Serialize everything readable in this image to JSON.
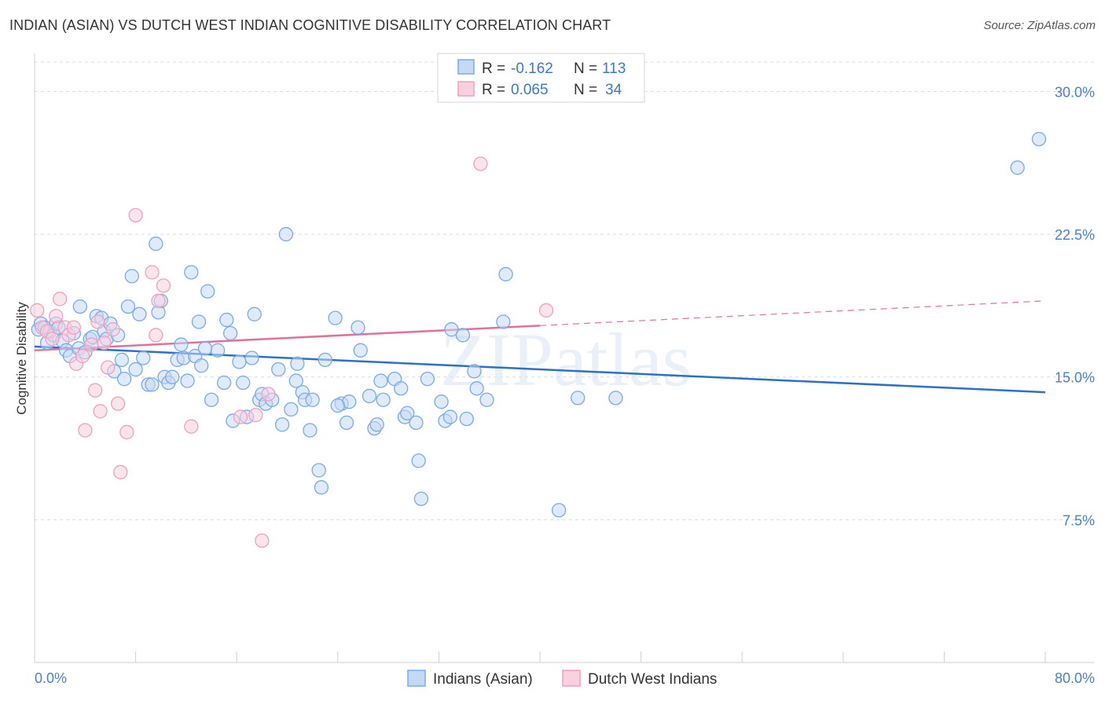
{
  "title": "INDIAN (ASIAN) VS DUTCH WEST INDIAN COGNITIVE DISABILITY CORRELATION CHART",
  "source": "Source: ZipAtlas.com",
  "watermark": "ZIPatlas",
  "chart_data": {
    "type": "scatter",
    "ylabel": "Cognitive Disability",
    "xlim": [
      0,
      80
    ],
    "ylim": [
      0,
      32
    ],
    "x_tick_labels": [
      "0.0%",
      "80.0%"
    ],
    "y_ticks": [
      7.5,
      15.0,
      22.5,
      30.0
    ],
    "y_tick_labels": [
      "7.5%",
      "15.0%",
      "22.5%",
      "30.0%"
    ],
    "grid": true,
    "legend_position": "top-center",
    "legend": [
      {
        "r_label": "R =",
        "r_value": "-0.162",
        "n_label": "N =",
        "n_value": "113"
      },
      {
        "r_label": "R =",
        "r_value": "0.065",
        "n_label": "N =",
        "n_value": "34"
      }
    ],
    "series": [
      {
        "name": "Indians (Asian)",
        "color": "#7aaae8",
        "fill": "#c4d9f5",
        "line_color": "#2c6fcd",
        "trend": {
          "x0": 0,
          "y0": 16.6,
          "x1": 80,
          "y1": 14.2,
          "dashed_from": null
        },
        "points": [
          [
            0.3,
            17.5
          ],
          [
            0.5,
            17.8
          ],
          [
            0.8,
            17.6
          ],
          [
            1.0,
            16.8
          ],
          [
            1.2,
            17.4
          ],
          [
            1.5,
            17.2
          ],
          [
            1.7,
            17.8
          ],
          [
            1.9,
            17.6
          ],
          [
            2.2,
            16.9
          ],
          [
            2.5,
            16.4
          ],
          [
            2.8,
            16.1
          ],
          [
            3.1,
            17.3
          ],
          [
            3.5,
            16.5
          ],
          [
            3.6,
            18.7
          ],
          [
            4.0,
            16.3
          ],
          [
            4.4,
            17.0
          ],
          [
            4.6,
            17.1
          ],
          [
            4.9,
            18.2
          ],
          [
            5.3,
            18.1
          ],
          [
            5.5,
            17.4
          ],
          [
            5.7,
            17.0
          ],
          [
            6.0,
            17.8
          ],
          [
            6.3,
            15.3
          ],
          [
            6.6,
            17.2
          ],
          [
            6.9,
            15.9
          ],
          [
            7.1,
            14.9
          ],
          [
            7.4,
            18.7
          ],
          [
            7.7,
            20.3
          ],
          [
            8.0,
            15.4
          ],
          [
            8.3,
            18.3
          ],
          [
            8.6,
            16.0
          ],
          [
            9.0,
            14.6
          ],
          [
            9.3,
            14.6
          ],
          [
            9.6,
            22.0
          ],
          [
            9.8,
            18.4
          ],
          [
            10.0,
            19.0
          ],
          [
            10.3,
            15.0
          ],
          [
            10.6,
            14.7
          ],
          [
            10.9,
            15.0
          ],
          [
            11.3,
            15.9
          ],
          [
            11.6,
            16.7
          ],
          [
            11.8,
            16.0
          ],
          [
            12.1,
            14.8
          ],
          [
            12.4,
            20.5
          ],
          [
            12.7,
            16.1
          ],
          [
            13.0,
            17.9
          ],
          [
            13.5,
            16.5
          ],
          [
            13.7,
            19.5
          ],
          [
            13.2,
            15.6
          ],
          [
            14.0,
            13.8
          ],
          [
            14.5,
            16.4
          ],
          [
            15.0,
            14.7
          ],
          [
            15.2,
            18.0
          ],
          [
            15.5,
            17.3
          ],
          [
            15.7,
            12.7
          ],
          [
            16.2,
            15.8
          ],
          [
            16.5,
            14.7
          ],
          [
            16.8,
            12.9
          ],
          [
            17.2,
            16.0
          ],
          [
            17.4,
            18.3
          ],
          [
            17.8,
            13.8
          ],
          [
            18.0,
            14.1
          ],
          [
            18.3,
            13.6
          ],
          [
            18.8,
            13.8
          ],
          [
            19.3,
            15.4
          ],
          [
            19.6,
            12.5
          ],
          [
            19.9,
            22.5
          ],
          [
            20.3,
            13.3
          ],
          [
            20.7,
            14.8
          ],
          [
            20.8,
            15.7
          ],
          [
            21.2,
            14.2
          ],
          [
            21.4,
            13.8
          ],
          [
            21.8,
            12.2
          ],
          [
            22.0,
            13.8
          ],
          [
            22.5,
            10.1
          ],
          [
            22.7,
            9.2
          ],
          [
            23.0,
            15.9
          ],
          [
            23.8,
            18.1
          ],
          [
            24.3,
            13.6
          ],
          [
            24.7,
            12.6
          ],
          [
            24.9,
            13.7
          ],
          [
            25.6,
            17.6
          ],
          [
            25.8,
            16.4
          ],
          [
            26.5,
            14.0
          ],
          [
            26.9,
            12.3
          ],
          [
            27.1,
            12.5
          ],
          [
            27.4,
            14.8
          ],
          [
            27.6,
            13.8
          ],
          [
            28.5,
            14.9
          ],
          [
            29.0,
            14.4
          ],
          [
            29.3,
            12.9
          ],
          [
            29.5,
            13.1
          ],
          [
            30.2,
            12.6
          ],
          [
            30.4,
            10.6
          ],
          [
            30.6,
            8.6
          ],
          [
            31.1,
            14.9
          ],
          [
            32.2,
            13.7
          ],
          [
            32.5,
            12.7
          ],
          [
            32.9,
            12.9
          ],
          [
            33.0,
            17.5
          ],
          [
            33.9,
            17.2
          ],
          [
            34.2,
            12.8
          ],
          [
            34.8,
            15.3
          ],
          [
            35.0,
            14.4
          ],
          [
            35.8,
            13.8
          ],
          [
            37.1,
            17.9
          ],
          [
            37.3,
            20.4
          ],
          [
            41.5,
            8.0
          ],
          [
            43.0,
            13.9
          ],
          [
            46.0,
            13.9
          ],
          [
            77.8,
            26.0
          ],
          [
            79.5,
            27.5
          ],
          [
            24.0,
            13.5
          ]
        ]
      },
      {
        "name": "Dutch West Indians",
        "color": "#f0a0bc",
        "fill": "#f8d0de",
        "line_color": "#e0709c",
        "trend": {
          "x0": 0,
          "y0": 16.4,
          "x1": 80,
          "y1": 19.0,
          "dashed_from": 40
        },
        "points": [
          [
            0.2,
            18.5
          ],
          [
            0.6,
            17.6
          ],
          [
            1.0,
            17.4
          ],
          [
            1.4,
            17.0
          ],
          [
            1.7,
            18.2
          ],
          [
            2.0,
            19.1
          ],
          [
            2.4,
            17.6
          ],
          [
            2.7,
            17.2
          ],
          [
            3.1,
            17.6
          ],
          [
            3.3,
            15.7
          ],
          [
            3.8,
            16.1
          ],
          [
            4.0,
            12.2
          ],
          [
            4.5,
            16.7
          ],
          [
            4.8,
            14.3
          ],
          [
            5.0,
            17.9
          ],
          [
            5.2,
            13.2
          ],
          [
            5.5,
            16.8
          ],
          [
            5.8,
            15.5
          ],
          [
            6.2,
            17.5
          ],
          [
            6.6,
            13.6
          ],
          [
            6.8,
            10.0
          ],
          [
            7.3,
            12.1
          ],
          [
            8.0,
            23.5
          ],
          [
            9.3,
            20.5
          ],
          [
            9.6,
            17.2
          ],
          [
            9.8,
            19.0
          ],
          [
            10.2,
            19.8
          ],
          [
            12.4,
            12.4
          ],
          [
            16.3,
            12.9
          ],
          [
            17.5,
            13.0
          ],
          [
            18.0,
            6.4
          ],
          [
            18.5,
            14.1
          ],
          [
            35.3,
            26.2
          ],
          [
            40.5,
            18.5
          ]
        ]
      }
    ]
  }
}
